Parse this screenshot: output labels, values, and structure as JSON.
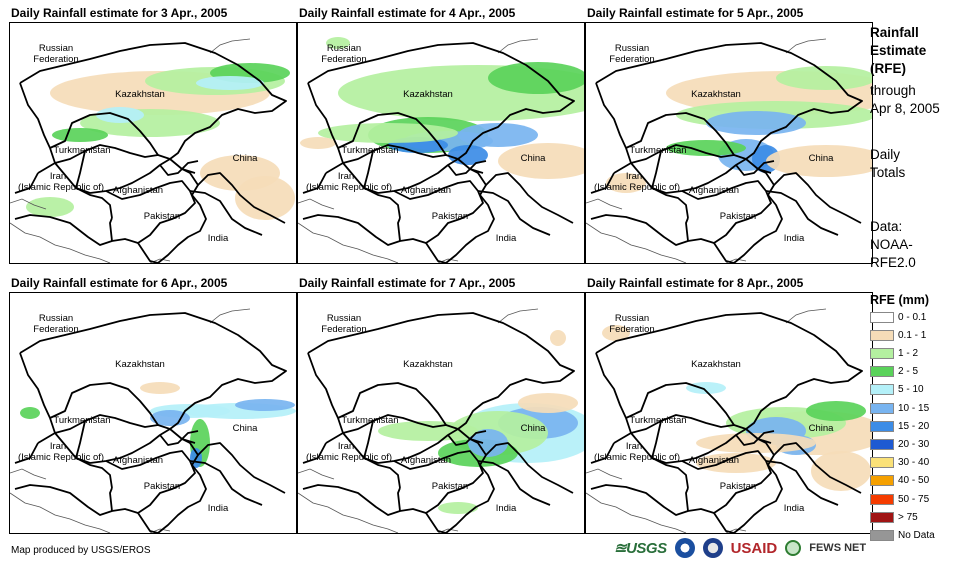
{
  "panels": [
    {
      "title": "Daily Rainfall estimate for 3 Apr., 2005"
    },
    {
      "title": "Daily Rainfall estimate for 4 Apr., 2005"
    },
    {
      "title": "Daily Rainfall estimate for 5 Apr., 2005"
    },
    {
      "title": "Daily Rainfall estimate for 6 Apr., 2005"
    },
    {
      "title": "Daily Rainfall estimate for 7 Apr., 2005"
    },
    {
      "title": "Daily Rainfall estimate for 8 Apr., 2005"
    }
  ],
  "countries": {
    "russia": "Russian\nFederation",
    "kazakhstan": "Kazakhstan",
    "turkmenistan": "Turkmenistan",
    "china": "China",
    "iran": "Iran\n(Islamic Republic of)",
    "afghanistan": "Afghanistan",
    "pakistan": "Pakistan",
    "india": "India"
  },
  "side": {
    "line1": "Rainfall",
    "line2": "Estimate",
    "line3": "(RFE)",
    "line4": "through",
    "line5": "Apr 8, 2005",
    "line6": "Daily",
    "line7": "Totals",
    "line8": "Data:",
    "line9": "NOAA-",
    "line10": "RFE2.0"
  },
  "legend": {
    "title": "RFE (mm)",
    "items": [
      {
        "label": "0 - 0.1",
        "color": "#ffffff"
      },
      {
        "label": "0.1 - 1",
        "color": "#f5dcb8"
      },
      {
        "label": "1 - 2",
        "color": "#b4f0a0"
      },
      {
        "label": "2 - 5",
        "color": "#5ad25a"
      },
      {
        "label": "5 - 10",
        "color": "#b4f0f8"
      },
      {
        "label": "10 - 15",
        "color": "#78b4f0"
      },
      {
        "label": "15 - 20",
        "color": "#3c8ce6"
      },
      {
        "label": "20 - 30",
        "color": "#1e5ad2"
      },
      {
        "label": "30 - 40",
        "color": "#fae178"
      },
      {
        "label": "40 - 50",
        "color": "#f5a000"
      },
      {
        "label": "50 - 75",
        "color": "#f53c00"
      },
      {
        "label": "> 75",
        "color": "#a01414"
      },
      {
        "label": "No Data",
        "color": "#969696"
      }
    ]
  },
  "footer": "Map produced by USGS/EROS",
  "logos": {
    "usgs": "≊USGS",
    "usaid": "USAID",
    "fews": "FEWS NET"
  }
}
